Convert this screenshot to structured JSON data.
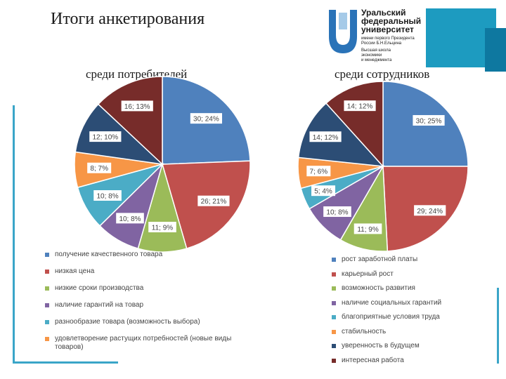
{
  "title": "Итоги анкетирования",
  "logo": {
    "name_lines": [
      "Уральский",
      "федеральный",
      "университет"
    ],
    "small_lines": [
      "имени первого Президента",
      "России Б.Н.Ельцина",
      "Высшая школа",
      "экономики",
      "и менеджмента"
    ]
  },
  "chart_data": [
    {
      "type": "pie",
      "title": "среди потребителей",
      "categories": [
        "получение качественного товара",
        "низкая цена",
        "низкие сроки производства",
        "наличие гарантий на товар",
        "разнообразие товара (возможность выбора)",
        "удовлетворение растущих потребностей (новые виды товаров)",
        "",
        ""
      ],
      "values": [
        30,
        26,
        11,
        10,
        10,
        8,
        12,
        16
      ],
      "labels": [
        "30; 24%",
        "26; 21%",
        "11; 9%",
        "10; 8%",
        "10; 8%",
        "8; 7%",
        "12; 10%",
        "16; 13%"
      ],
      "colors": [
        "#4f81bd",
        "#c0504d",
        "#9bbb59",
        "#8064a2",
        "#4bacc6",
        "#f79646",
        "#2c4d75",
        "#772c2a"
      ],
      "legend_position": "bottom"
    },
    {
      "type": "pie",
      "title": "среди сотрудников",
      "categories": [
        "рост заработной платы",
        "карьерный рост",
        "возможность развития",
        "наличие социальных гарантий",
        "благоприятные условия труда",
        "стабильность",
        "уверенность в будущем",
        "интересная работа"
      ],
      "values": [
        30,
        29,
        11,
        10,
        5,
        7,
        14,
        14
      ],
      "labels": [
        "30; 25%",
        "29; 24%",
        "11; 9%",
        "10; 8%",
        "5; 4%",
        "7; 6%",
        "14; 12%",
        "14; 12%"
      ],
      "colors": [
        "#4f81bd",
        "#c0504d",
        "#9bbb59",
        "#8064a2",
        "#4bacc6",
        "#f79646",
        "#2c4d75",
        "#772c2a"
      ],
      "legend_position": "bottom"
    }
  ]
}
